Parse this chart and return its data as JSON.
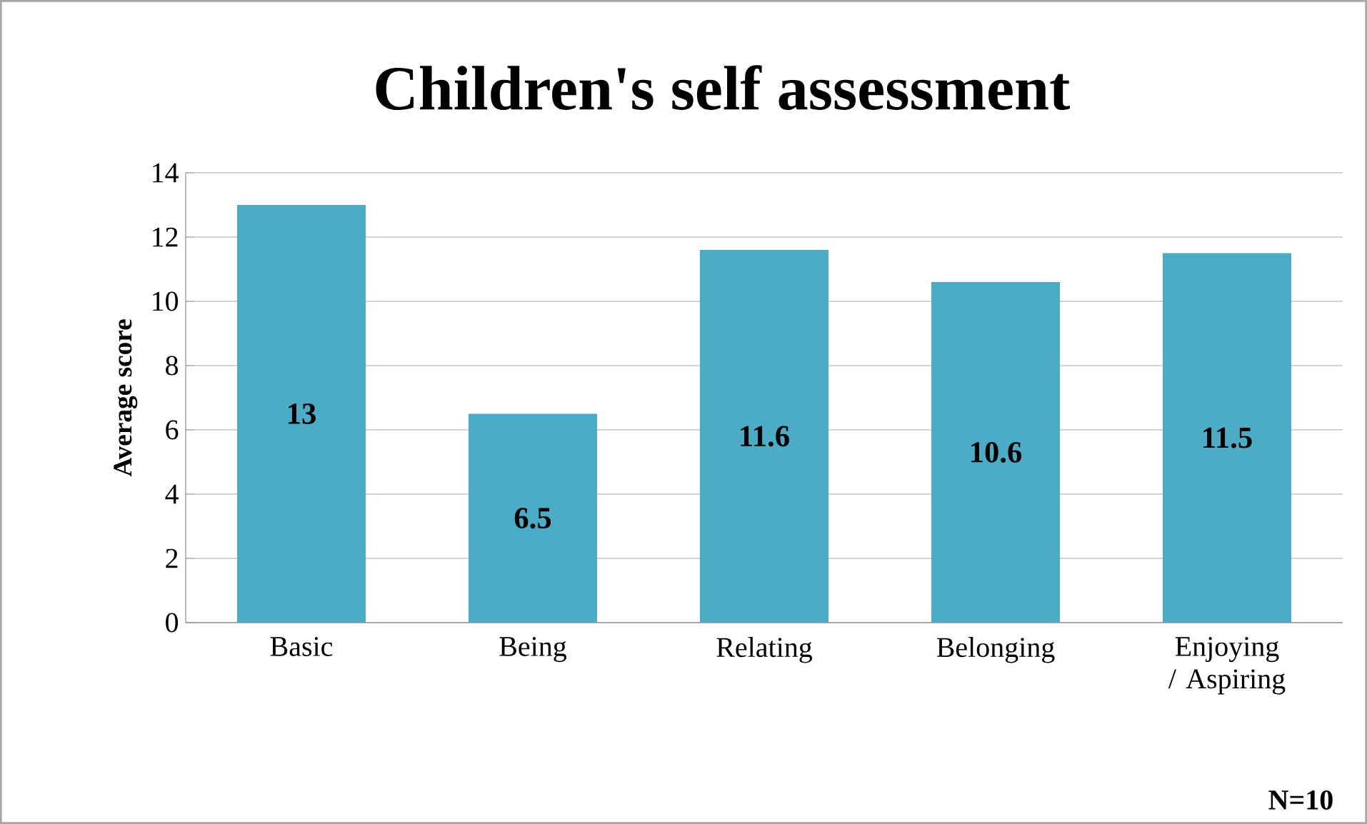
{
  "chart_data": {
    "type": "bar",
    "title": "Children's self assessment",
    "ylabel": "Average score",
    "categories": [
      "Basic",
      "Being",
      "Relating",
      "Belonging",
      "Enjoying / Aspiring"
    ],
    "values": [
      13,
      6.5,
      11.6,
      10.6,
      11.5
    ],
    "color": "#4bacc6",
    "ylim": [
      0,
      14
    ],
    "yticks": [
      0,
      2,
      4,
      6,
      8,
      10,
      12,
      14
    ],
    "grid": "y",
    "data_labels": true,
    "annotations": [
      "N=10"
    ]
  }
}
